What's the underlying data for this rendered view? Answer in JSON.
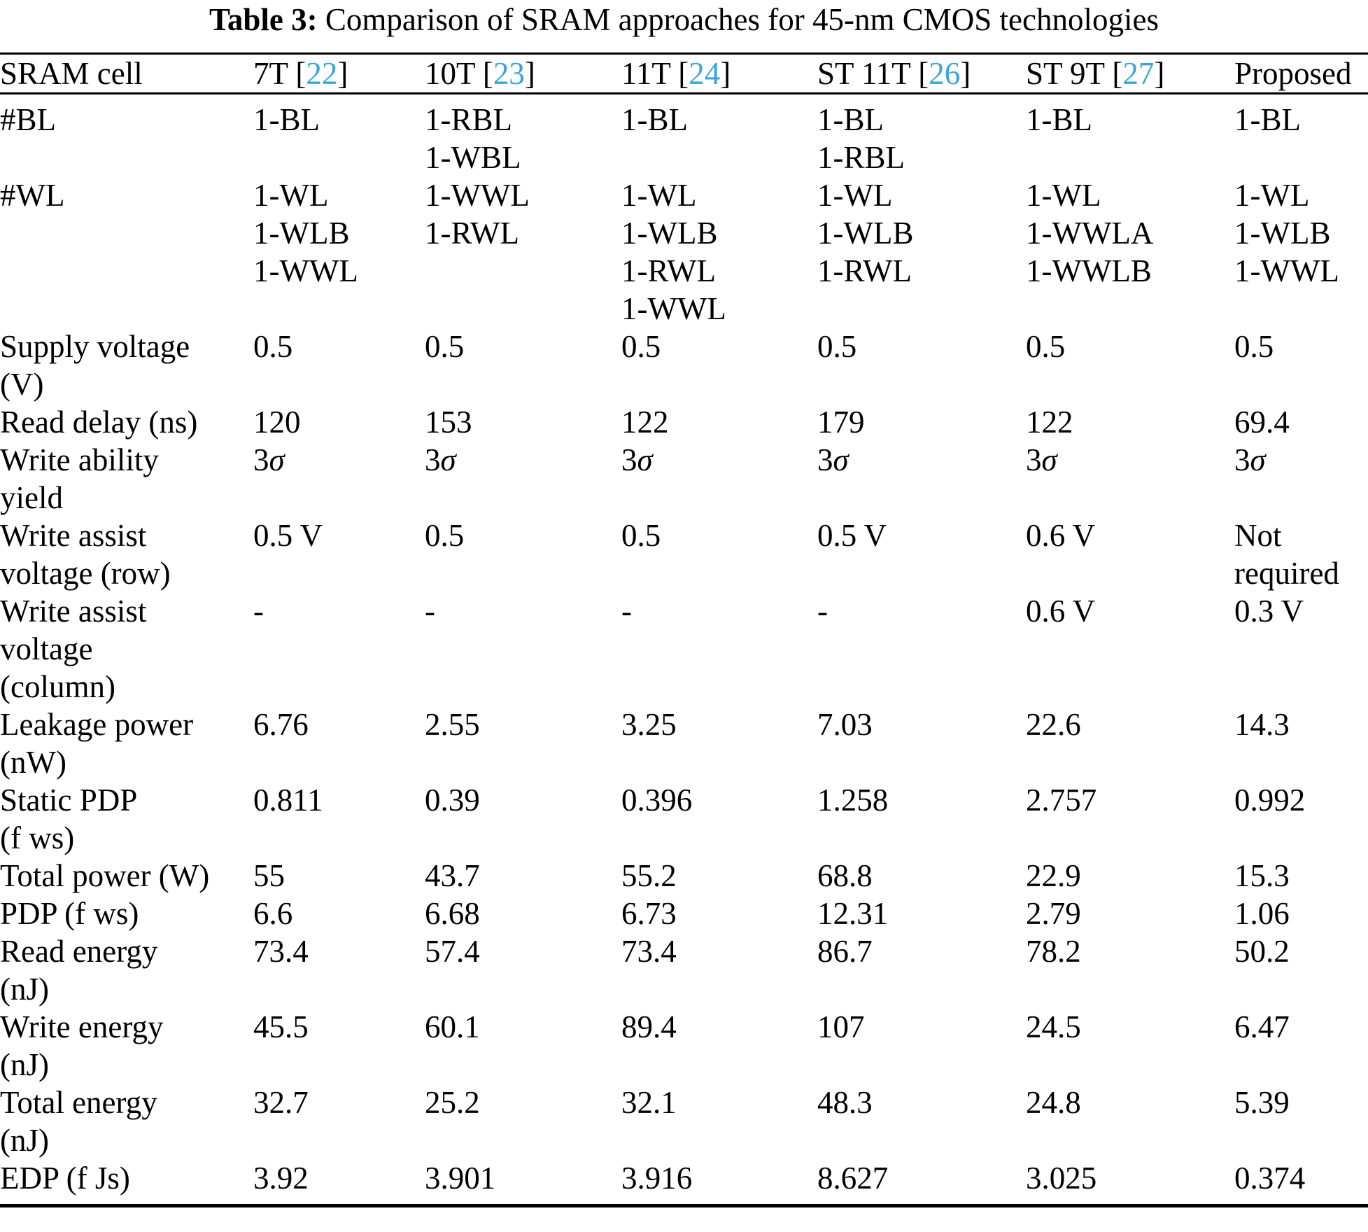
{
  "caption": {
    "label": "Table 3:",
    "text": " Comparison of SRAM approaches for 45-nm CMOS technologies"
  },
  "colors": {
    "citation": "#3aa3dc",
    "text": "#000000",
    "background": "#ffffff"
  },
  "table": {
    "columns": [
      {
        "label": "SRAM cell"
      },
      {
        "prefix": "7T [",
        "ref": "22",
        "suffix": "]"
      },
      {
        "prefix": "10T [",
        "ref": "23",
        "suffix": "]"
      },
      {
        "prefix": "11T [",
        "ref": "24",
        "suffix": "]"
      },
      {
        "prefix": "ST 11T [",
        "ref": "26",
        "suffix": "]"
      },
      {
        "prefix": "ST 9T [",
        "ref": "27",
        "suffix": "]"
      },
      {
        "label": "Proposed"
      }
    ],
    "rows": [
      {
        "label_lines": [
          "#BL"
        ],
        "cells": [
          [
            "1-BL"
          ],
          [
            "1-RBL",
            "1-WBL"
          ],
          [
            "1-BL"
          ],
          [
            "1-BL",
            "1-RBL"
          ],
          [
            "1-BL"
          ],
          [
            "1-BL"
          ]
        ]
      },
      {
        "label_lines": [
          "#WL"
        ],
        "cells": [
          [
            "1-WL",
            "1-WLB",
            "1-WWL"
          ],
          [
            "1-WWL",
            "1-RWL"
          ],
          [
            "1-WL",
            "1-WLB",
            "1-RWL",
            "1-WWL"
          ],
          [
            "1-WL",
            "1-WLB",
            "1-RWL"
          ],
          [
            "1-WL",
            "1-WWLA",
            "1-WWLB"
          ],
          [
            "1-WL",
            "1-WLB",
            "1-WWL"
          ]
        ]
      },
      {
        "label_lines": [
          "Supply voltage",
          "(V)"
        ],
        "cells": [
          [
            "0.5"
          ],
          [
            "0.5"
          ],
          [
            "0.5"
          ],
          [
            "0.5"
          ],
          [
            "0.5"
          ],
          [
            "0.5"
          ]
        ]
      },
      {
        "label_lines": [
          "Read delay (ns)"
        ],
        "cells": [
          [
            "120"
          ],
          [
            "153"
          ],
          [
            "122"
          ],
          [
            "179"
          ],
          [
            "122"
          ],
          [
            "69.4"
          ]
        ]
      },
      {
        "label_lines": [
          "Write ability",
          "yield"
        ],
        "cells": [
          [
            "3σ"
          ],
          [
            "3σ"
          ],
          [
            "3σ"
          ],
          [
            "3σ"
          ],
          [
            "3σ"
          ],
          [
            "3σ"
          ]
        ]
      },
      {
        "label_lines": [
          "Write assist",
          "voltage (row)"
        ],
        "cells": [
          [
            "0.5 V"
          ],
          [
            "0.5"
          ],
          [
            "0.5"
          ],
          [
            "0.5 V"
          ],
          [
            "0.6 V"
          ],
          [
            "Not",
            "required"
          ]
        ]
      },
      {
        "label_lines": [
          "Write assist",
          "voltage",
          "(column)"
        ],
        "cells": [
          [
            "-"
          ],
          [
            "-"
          ],
          [
            "-"
          ],
          [
            "-"
          ],
          [
            "0.6 V"
          ],
          [
            "0.3 V"
          ]
        ]
      },
      {
        "label_lines": [
          "Leakage power",
          "(nW)"
        ],
        "cells": [
          [
            "6.76"
          ],
          [
            "2.55"
          ],
          [
            "3.25"
          ],
          [
            "7.03"
          ],
          [
            "22.6"
          ],
          [
            "14.3"
          ]
        ]
      },
      {
        "label_lines": [
          "Static PDP",
          "(f ws)"
        ],
        "cells": [
          [
            "0.811"
          ],
          [
            "0.39"
          ],
          [
            "0.396"
          ],
          [
            "1.258"
          ],
          [
            "2.757"
          ],
          [
            "0.992"
          ]
        ]
      },
      {
        "label_lines": [
          "Total power (W)"
        ],
        "cells": [
          [
            "55"
          ],
          [
            "43.7"
          ],
          [
            "55.2"
          ],
          [
            "68.8"
          ],
          [
            "22.9"
          ],
          [
            "15.3"
          ]
        ]
      },
      {
        "label_lines": [
          "PDP (f ws)"
        ],
        "cells": [
          [
            "6.6"
          ],
          [
            "6.68"
          ],
          [
            "6.73"
          ],
          [
            "12.31"
          ],
          [
            "2.79"
          ],
          [
            "1.06"
          ]
        ]
      },
      {
        "label_lines": [
          "Read energy",
          "(nJ)"
        ],
        "cells": [
          [
            "73.4"
          ],
          [
            "57.4"
          ],
          [
            "73.4"
          ],
          [
            "86.7"
          ],
          [
            "78.2"
          ],
          [
            "50.2"
          ]
        ]
      },
      {
        "label_lines": [
          "Write energy",
          "(nJ)"
        ],
        "cells": [
          [
            "45.5"
          ],
          [
            "60.1"
          ],
          [
            "89.4"
          ],
          [
            "107"
          ],
          [
            "24.5"
          ],
          [
            "6.47"
          ]
        ]
      },
      {
        "label_lines": [
          "Total energy",
          "(nJ)"
        ],
        "cells": [
          [
            "32.7"
          ],
          [
            "25.2"
          ],
          [
            "32.1"
          ],
          [
            "48.3"
          ],
          [
            "24.8"
          ],
          [
            "5.39"
          ]
        ]
      },
      {
        "label_lines": [
          "EDP (f Js)"
        ],
        "cells": [
          [
            "3.92"
          ],
          [
            "3.901"
          ],
          [
            "3.916"
          ],
          [
            "8.627"
          ],
          [
            "3.025"
          ],
          [
            "0.374"
          ]
        ]
      }
    ]
  }
}
